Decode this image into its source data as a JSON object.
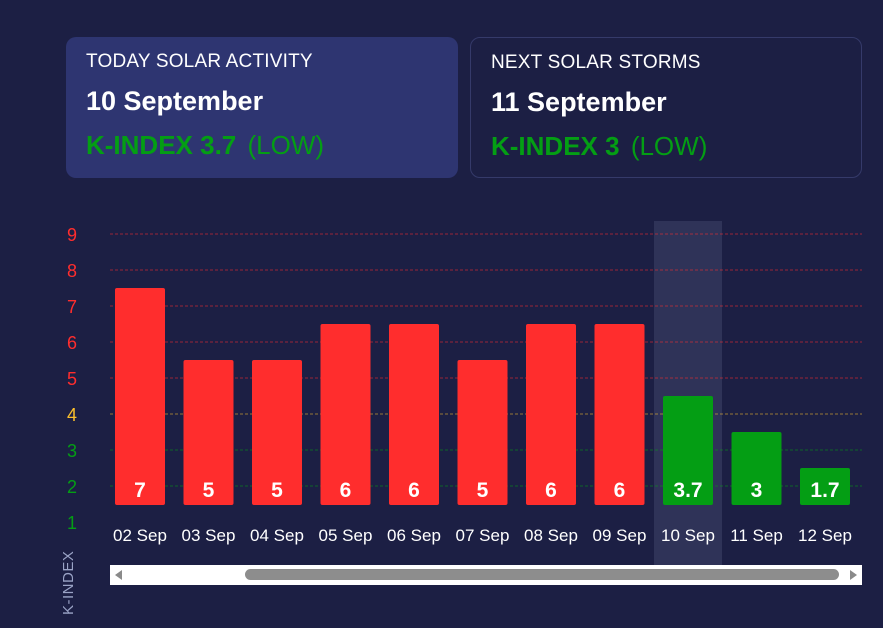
{
  "today": {
    "label": "TODAY SOLAR ACTIVITY",
    "date": "10 September",
    "k_text": "K-INDEX 3.7",
    "level_text": "(LOW)"
  },
  "next": {
    "label": "NEXT SOLAR STORMS",
    "date": "11 September",
    "k_text": "K-INDEX 3",
    "level_text": "(LOW)"
  },
  "colors": {
    "background": "#1c1f44",
    "high": "#ff2d2d",
    "moderate": "#fbbf2c",
    "low": "#049e14"
  },
  "chart_data": {
    "type": "bar",
    "ylabel": "K-INDEX",
    "ylim": [
      1,
      9
    ],
    "yticks": [
      1,
      2,
      3,
      4,
      5,
      6,
      7,
      8,
      9
    ],
    "grid": true,
    "highlighted_category": "10 Sep",
    "categories": [
      "02 Sep",
      "03 Sep",
      "04 Sep",
      "05 Sep",
      "06 Sep",
      "07 Sep",
      "08 Sep",
      "09 Sep",
      "10 Sep",
      "11 Sep",
      "12 Sep"
    ],
    "values": [
      7,
      5,
      5,
      6,
      6,
      5,
      6,
      6,
      3.7,
      3,
      1.7
    ],
    "value_labels": [
      "7",
      "5",
      "5",
      "6",
      "6",
      "5",
      "6",
      "6",
      "3.7",
      "3",
      "1.7"
    ],
    "bar_tops": [
      7.5,
      5.5,
      5.5,
      6.5,
      6.5,
      5.5,
      6.5,
      6.5,
      4.5,
      3.5,
      2.5
    ]
  }
}
